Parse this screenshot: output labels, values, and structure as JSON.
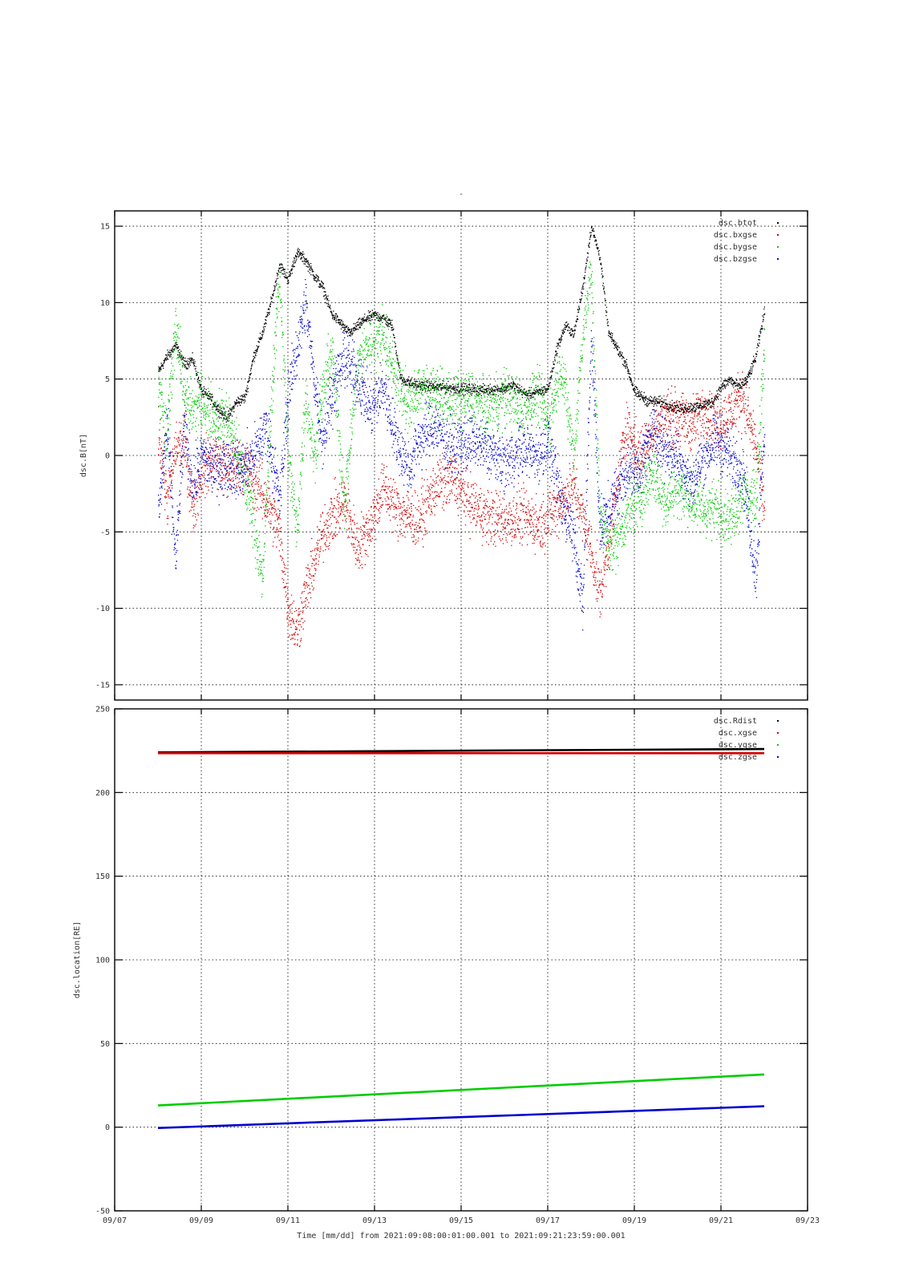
{
  "figure": {
    "title": "-",
    "xlabel": "Time [mm/dd]  from 2021:09:08:00:01:00.001  to  2021:09:21:23:59:00.001",
    "x_tick_labels": [
      "09/07",
      "09/09",
      "09/11",
      "09/13",
      "09/15",
      "09/17",
      "09/19",
      "09/21",
      "09/23"
    ]
  },
  "chart_data": [
    {
      "type": "scatter",
      "ylabel": "dsc.B[nT]",
      "xlim_days_of_september": [
        7,
        23
      ],
      "ylim": [
        -16,
        16
      ],
      "y_ticks": [
        15,
        10,
        5,
        0,
        -5,
        -10,
        -15
      ],
      "grid": true,
      "legend_position": "top-right",
      "series": [
        {
          "name": "dsc.btot",
          "color": "#000000",
          "x": [
            8.0,
            8.2,
            8.4,
            8.6,
            8.8,
            9.0,
            9.2,
            9.4,
            9.6,
            9.8,
            10.0,
            10.2,
            10.4,
            10.6,
            10.8,
            11.0,
            11.2,
            11.4,
            11.6,
            11.8,
            12.0,
            12.2,
            12.4,
            12.6,
            12.8,
            13.0,
            13.2,
            13.4,
            13.6,
            13.8,
            14.0,
            14.5,
            15.0,
            15.5,
            16.0,
            16.2,
            16.5,
            16.8,
            17.0,
            17.2,
            17.4,
            17.6,
            17.8,
            18.0,
            18.2,
            18.4,
            18.6,
            18.8,
            19.0,
            19.3,
            19.6,
            20.0,
            20.4,
            20.8,
            21.0,
            21.2,
            21.4,
            21.6,
            21.8,
            22.0
          ],
          "values": [
            5.5,
            6.5,
            7.2,
            6.0,
            6.3,
            4.2,
            3.8,
            3.0,
            2.5,
            3.5,
            3.8,
            6.5,
            8.0,
            10.0,
            12.5,
            11.5,
            13.3,
            12.8,
            11.8,
            11.0,
            9.3,
            8.7,
            8.0,
            8.5,
            9.0,
            9.2,
            9.0,
            8.5,
            5.0,
            4.8,
            4.6,
            4.5,
            4.4,
            4.3,
            4.4,
            4.6,
            4.0,
            4.2,
            4.4,
            7.0,
            8.5,
            8.0,
            11.0,
            15.0,
            13.0,
            8.0,
            7.0,
            6.0,
            4.2,
            3.6,
            3.5,
            3.1,
            3.2,
            3.5,
            4.5,
            5.0,
            4.5,
            5.0,
            6.5,
            9.5
          ]
        },
        {
          "name": "dsc.bxgse",
          "color": "#d40000",
          "x": [
            8.0,
            8.2,
            8.4,
            8.6,
            8.8,
            9.0,
            9.3,
            9.6,
            9.9,
            10.2,
            10.5,
            10.8,
            11.0,
            11.2,
            11.4,
            11.6,
            11.8,
            12.0,
            12.3,
            12.6,
            12.9,
            13.2,
            13.5,
            13.8,
            14.0,
            14.4,
            14.8,
            15.2,
            15.6,
            16.0,
            16.4,
            16.8,
            17.0,
            17.3,
            17.6,
            17.9,
            18.2,
            18.5,
            18.8,
            19.1,
            19.4,
            19.7,
            20.0,
            20.3,
            20.6,
            20.9,
            21.2,
            21.5,
            21.8,
            22.0
          ],
          "values": [
            2.0,
            -3.0,
            0.5,
            1.0,
            -3.5,
            -1.0,
            0.0,
            -1.0,
            -0.5,
            -1.5,
            -3.0,
            -5.0,
            -10.0,
            -11.5,
            -9.0,
            -7.0,
            -5.0,
            -4.0,
            -3.0,
            -6.0,
            -4.5,
            -2.0,
            -3.5,
            -4.0,
            -4.3,
            -2.0,
            -1.5,
            -3.0,
            -4.0,
            -4.2,
            -4.0,
            -4.5,
            -4.0,
            -3.0,
            -2.0,
            -5.0,
            -9.0,
            -4.0,
            2.0,
            0.0,
            1.5,
            2.5,
            2.5,
            2.0,
            3.0,
            2.0,
            2.8,
            4.0,
            0.5,
            -3.5
          ]
        },
        {
          "name": "dsc.bygse",
          "color": "#00cc00",
          "x": [
            8.0,
            8.2,
            8.4,
            8.6,
            8.8,
            9.0,
            9.3,
            9.6,
            9.9,
            10.2,
            10.4,
            10.6,
            10.8,
            11.0,
            11.2,
            11.4,
            11.6,
            11.8,
            12.0,
            12.3,
            12.6,
            12.9,
            13.2,
            13.5,
            13.8,
            14.0,
            14.4,
            14.8,
            15.2,
            15.6,
            16.0,
            16.4,
            16.8,
            17.0,
            17.3,
            17.6,
            17.8,
            18.0,
            18.2,
            18.5,
            18.8,
            19.1,
            19.4,
            19.7,
            20.0,
            20.3,
            20.6,
            20.9,
            21.2,
            21.5,
            21.8,
            22.0
          ],
          "values": [
            4.5,
            1.0,
            9.0,
            3.5,
            3.0,
            3.5,
            2.5,
            2.5,
            -0.5,
            -4.0,
            -8.5,
            3.0,
            12.0,
            0.0,
            -5.0,
            4.0,
            0.0,
            4.0,
            7.0,
            -3.0,
            6.0,
            7.5,
            8.0,
            5.0,
            3.0,
            4.5,
            4.0,
            3.5,
            3.8,
            3.0,
            4.0,
            3.0,
            4.0,
            2.0,
            6.0,
            0.0,
            8.0,
            12.0,
            -4.0,
            -6.0,
            -4.0,
            -3.0,
            -1.0,
            -3.0,
            -2.0,
            -3.0,
            -3.5,
            -3.5,
            -4.0,
            -2.5,
            -3.0,
            7.5
          ]
        },
        {
          "name": "dsc.bzgse",
          "color": "#0000cc",
          "x": [
            8.0,
            8.2,
            8.4,
            8.6,
            8.8,
            9.0,
            9.3,
            9.6,
            9.9,
            10.2,
            10.5,
            10.8,
            11.0,
            11.2,
            11.4,
            11.6,
            11.8,
            12.0,
            12.3,
            12.6,
            12.9,
            13.2,
            13.5,
            13.8,
            14.0,
            14.4,
            14.8,
            15.2,
            15.6,
            16.0,
            16.4,
            16.8,
            17.0,
            17.3,
            17.6,
            17.8,
            18.0,
            18.2,
            18.5,
            18.8,
            19.1,
            19.4,
            19.7,
            20.0,
            20.3,
            20.6,
            20.9,
            21.2,
            21.5,
            21.8,
            22.0
          ],
          "values": [
            -4.0,
            2.0,
            -7.0,
            2.0,
            -2.0,
            0.0,
            -1.0,
            -0.5,
            -1.0,
            0.0,
            2.0,
            -3.0,
            4.0,
            7.0,
            10.0,
            5.0,
            1.0,
            4.0,
            6.5,
            5.0,
            3.0,
            4.5,
            1.0,
            -1.0,
            1.0,
            2.0,
            0.5,
            1.0,
            0.5,
            -0.5,
            0.5,
            0.0,
            1.0,
            -3.0,
            -5.0,
            -10.0,
            8.0,
            -5.0,
            -3.0,
            -1.0,
            -1.0,
            1.5,
            0.5,
            0.0,
            -2.0,
            0.0,
            1.0,
            0.0,
            -1.0,
            -8.0,
            2.0
          ]
        }
      ]
    },
    {
      "type": "scatter",
      "ylabel": "dsc.location[RE]",
      "xlim_days_of_september": [
        7,
        23
      ],
      "ylim": [
        -50,
        250
      ],
      "y_ticks": [
        250,
        200,
        150,
        100,
        50,
        0,
        -50
      ],
      "grid": true,
      "legend_position": "top-right",
      "series": [
        {
          "name": "dsc.Rdist",
          "color": "#000000",
          "x": [
            8.0,
            22.0
          ],
          "values": [
            224.0,
            226.0
          ]
        },
        {
          "name": "dsc.xgse",
          "color": "#d40000",
          "x": [
            8.0,
            22.0
          ],
          "values": [
            223.5,
            223.5
          ]
        },
        {
          "name": "dsc.ygse",
          "color": "#00cc00",
          "x": [
            8.0,
            22.0
          ],
          "values": [
            13.0,
            31.5
          ]
        },
        {
          "name": "dsc.zgse",
          "color": "#0000cc",
          "x": [
            8.0,
            22.0
          ],
          "values": [
            -0.5,
            12.5
          ]
        }
      ]
    }
  ]
}
